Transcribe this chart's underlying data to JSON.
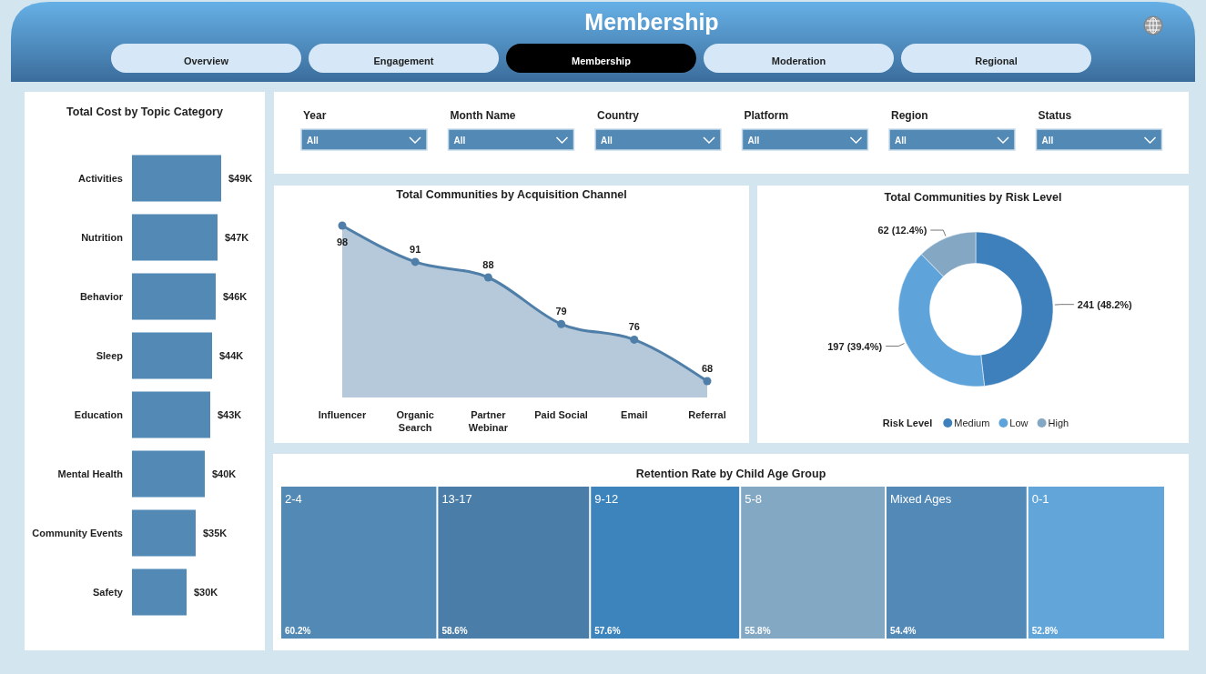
{
  "chart_data": [
    {
      "type": "other",
      "title": "Membership",
      "categories": [
        "Overview",
        "Engagement",
        "Membership",
        "Moderation",
        "Regional"
      ],
      "colors": [
        "#d6e8f7",
        "#d6e8f7",
        "#000000",
        "#d6e8f7",
        "#d6e8f7"
      ]
    },
    {
      "type": "bar",
      "title": "Total Cost by Topic Category",
      "orientation": "horizontal",
      "categories": [
        "Activities",
        "Nutrition",
        "Behavior",
        "Sleep",
        "Education",
        "Mental Health",
        "Community Events",
        "Safety"
      ],
      "values": [
        49,
        47,
        46,
        44,
        43,
        40,
        35,
        30
      ],
      "value_labels": [
        "$49K",
        "$47K",
        "$46K",
        "$44K",
        "$43K",
        "$40K",
        "$35K",
        "$30K"
      ],
      "color": "#5289b5",
      "tick_labels": "y"
    },
    {
      "type": "other",
      "categories": [
        "Year",
        "Month Name",
        "Country",
        "Platform",
        "Region",
        "Status"
      ],
      "value_labels": [
        "All",
        "All",
        "All",
        "All",
        "All",
        "All"
      ],
      "color": "#5289b5"
    },
    {
      "type": "area",
      "title": "Total Communities by Acquisition Channel",
      "categories": [
        "Influencer",
        "Organic Search",
        "Partner Webinar",
        "Paid Social",
        "Email",
        "Referral"
      ],
      "values": [
        98,
        91,
        88,
        79,
        76,
        68
      ],
      "color": "#4f7fa8",
      "marker": "circle",
      "data_labels": true,
      "tick_labels": "x"
    },
    {
      "type": "donut",
      "title": "Total Communities by Risk Level",
      "categories": [
        "Medium",
        "Low",
        "High"
      ],
      "values": [
        241,
        197,
        62
      ],
      "value_labels": [
        "241 (48.2%)",
        "197 (39.4%)",
        "62 (12.4%)"
      ],
      "colors": [
        "#3d80bb",
        "#5ea4da",
        "#84a7c3"
      ],
      "legend": "bottom",
      "legend_title": "Risk Level"
    },
    {
      "type": "other",
      "title": "Retention Rate by Child Age Group",
      "categories": [
        "2-4",
        "13-17",
        "9-12",
        "5-8",
        "Mixed Ages",
        "0-1"
      ],
      "values": [
        60.2,
        58.6,
        57.6,
        55.8,
        54.4,
        52.8
      ],
      "value_labels": [
        "60.2%",
        "58.6%",
        "57.6%",
        "55.8%",
        "54.4%",
        "52.8%"
      ],
      "colors": [
        "#5289b5",
        "#4a7ea8",
        "#3d84bd",
        "#82a8c4",
        "#5289b7",
        "#61a5d9"
      ]
    }
  ]
}
